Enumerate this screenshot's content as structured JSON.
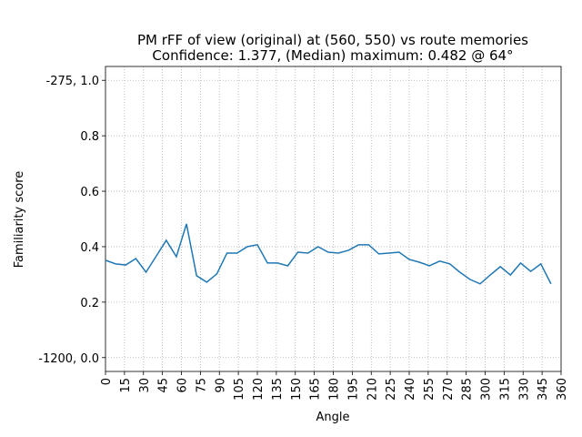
{
  "chart_data": {
    "type": "line",
    "title": "PM rFF of view (original) at (560, 550) vs route memories",
    "subtitle": "Confidence: 1.377, (Median) maximum: 0.482 @ 64°",
    "x_label": "Angle",
    "y_label": "Familiarity score",
    "x": [
      0,
      8,
      16,
      24,
      32,
      40,
      48,
      56,
      64,
      72,
      80,
      88,
      96,
      104,
      112,
      120,
      128,
      136,
      144,
      152,
      160,
      168,
      176,
      184,
      192,
      200,
      208,
      216,
      224,
      232,
      240,
      248,
      256,
      264,
      272,
      280,
      288,
      296,
      304,
      312,
      320,
      328,
      336,
      344,
      352
    ],
    "series": [
      {
        "color": "#1f77b4",
        "values": [
          0.351,
          0.338,
          0.334,
          0.357,
          0.308,
          0.365,
          0.423,
          0.364,
          0.482,
          0.295,
          0.272,
          0.302,
          0.377,
          0.377,
          0.4,
          0.407,
          0.341,
          0.341,
          0.331,
          0.38,
          0.377,
          0.4,
          0.38,
          0.377,
          0.387,
          0.407,
          0.407,
          0.374,
          0.377,
          0.38,
          0.354,
          0.344,
          0.331,
          0.348,
          0.338,
          0.308,
          0.282,
          0.266,
          0.298,
          0.328,
          0.298,
          0.341,
          0.311,
          0.338,
          0.266
        ]
      }
    ],
    "xlim": [
      0,
      360
    ],
    "xticks": [
      0,
      15,
      30,
      45,
      60,
      75,
      90,
      105,
      120,
      135,
      150,
      165,
      180,
      195,
      210,
      225,
      240,
      255,
      270,
      285,
      300,
      315,
      330,
      345,
      360
    ],
    "ylim": [
      -0.05,
      1.05
    ],
    "yticks": [
      {
        "value": 0,
        "label": "-1200, 0.0"
      },
      0.2,
      0.4,
      0.6,
      0.8,
      {
        "value": 1,
        "label": "-275, 1.0"
      }
    ],
    "grid": true
  }
}
